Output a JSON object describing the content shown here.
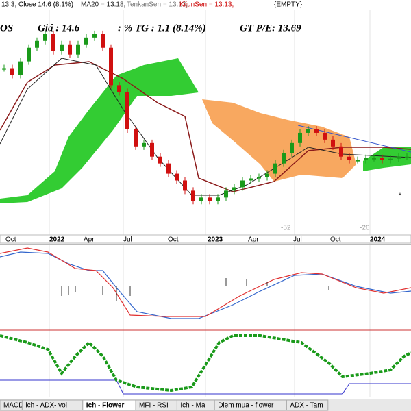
{
  "header": {
    "items": [
      "13.3, Close 14.6 (8.1%)",
      "MA20 = 13.18,",
      "TenkanSen = 13.13,",
      "KijunSen = 13.13,",
      "{EMPTY}"
    ]
  },
  "title_bar": {
    "symbol": "OS",
    "price": "Giá : 14.6",
    "change": ": % TG : 1.1 (8.14%)",
    "pe": "GT P/E: 13.69"
  },
  "price": {
    "type": "candlestick",
    "ylim": [
      9,
      24.6
    ],
    "close": [
      21.1,
      20.6,
      21.6,
      22.6,
      23.1,
      23.6,
      22.35,
      22.85,
      22.1,
      22.85,
      23.35,
      23.6,
      22.6,
      19.85,
      19.35,
      16.6,
      15.35,
      15.6,
      14.6,
      14.1,
      13.35,
      12.85,
      12.1,
      11.35,
      11.6,
      11.35,
      11.6,
      12.1,
      12.35,
      12.85,
      13.0,
      13.1,
      13.35,
      14.1,
      14.85,
      15.6,
      16.35,
      16.6,
      16.35,
      15.85,
      15.35,
      14.6,
      14.35,
      14.35,
      14.5,
      14.5,
      14.35,
      14.45,
      14.6,
      14.6
    ]
  },
  "x_labels": [
    "Oct",
    "2022",
    "Apr",
    "Jul",
    "Oct",
    "2023",
    "Apr",
    "Jul",
    "Oct",
    "2024"
  ],
  "annotations": [
    "-52",
    "-26",
    "*"
  ],
  "tabs": [
    "MACD",
    "ich - ADX- vol",
    "Ich - Flower",
    "MFI - RSI",
    "Ich - Ma",
    "Diem mua - flower",
    "ADX - Tam"
  ]
}
